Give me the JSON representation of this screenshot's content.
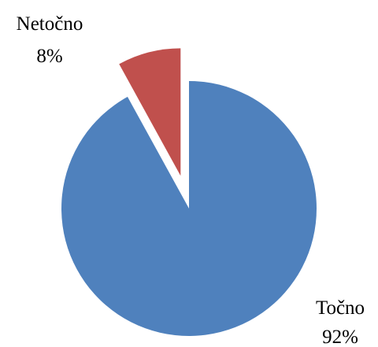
{
  "chart_data": {
    "type": "pie",
    "title": "",
    "slices": [
      {
        "label": "Netočno",
        "value": 8,
        "value_label": "8%",
        "color": "#C0504D",
        "exploded": true
      },
      {
        "label": "Točno",
        "value": 92,
        "value_label": "92%",
        "color": "#4F81BD",
        "exploded": false
      }
    ],
    "legend": "none",
    "start_angle_deg": 0,
    "direction": "counterclockwise"
  }
}
